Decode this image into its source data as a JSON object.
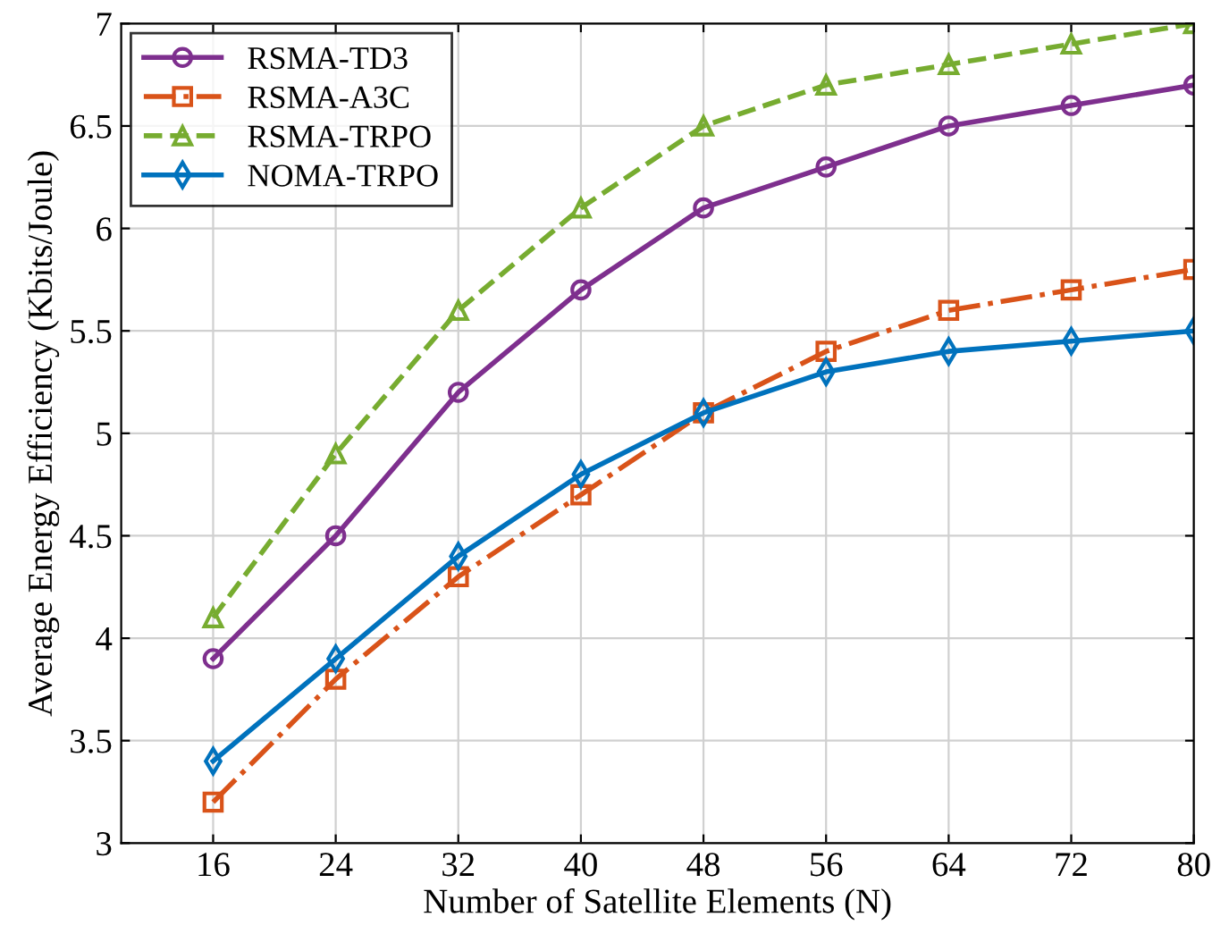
{
  "chart_data": {
    "type": "line",
    "xlabel": "Number of Satellite Elements (N)",
    "ylabel": "Average Energy Efficiency (Kbits/Joule)",
    "x": [
      16,
      24,
      32,
      40,
      48,
      56,
      64,
      72,
      80
    ],
    "series": [
      {
        "name": "RSMA-TD3",
        "color": "#7e2f8e",
        "marker": "circle",
        "line_style": "solid",
        "values": [
          3.9,
          4.5,
          5.2,
          5.7,
          6.1,
          6.3,
          6.5,
          6.6,
          6.7
        ]
      },
      {
        "name": "RSMA-A3C",
        "color": "#d95319",
        "marker": "square",
        "line_style": "dashdot",
        "values": [
          3.2,
          3.8,
          4.3,
          4.7,
          5.1,
          5.4,
          5.6,
          5.7,
          5.8
        ]
      },
      {
        "name": "RSMA-TRPO",
        "color": "#77ac30",
        "marker": "triangle",
        "line_style": "dashed",
        "values": [
          4.1,
          4.9,
          5.6,
          6.1,
          6.5,
          6.7,
          6.8,
          6.9,
          7.0
        ]
      },
      {
        "name": "NOMA-TRPO",
        "color": "#0072bd",
        "marker": "diamond",
        "line_style": "solid",
        "values": [
          3.4,
          3.9,
          4.4,
          4.8,
          5.1,
          5.3,
          5.4,
          5.45,
          5.5
        ]
      }
    ],
    "xlim": [
      10,
      80
    ],
    "ylim": [
      3,
      7
    ],
    "xticks": [
      16,
      24,
      32,
      40,
      48,
      56,
      64,
      72,
      80
    ],
    "yticks": [
      3,
      3.5,
      4,
      4.5,
      5,
      5.5,
      6,
      6.5,
      7
    ],
    "grid": true,
    "legend": "top left"
  }
}
